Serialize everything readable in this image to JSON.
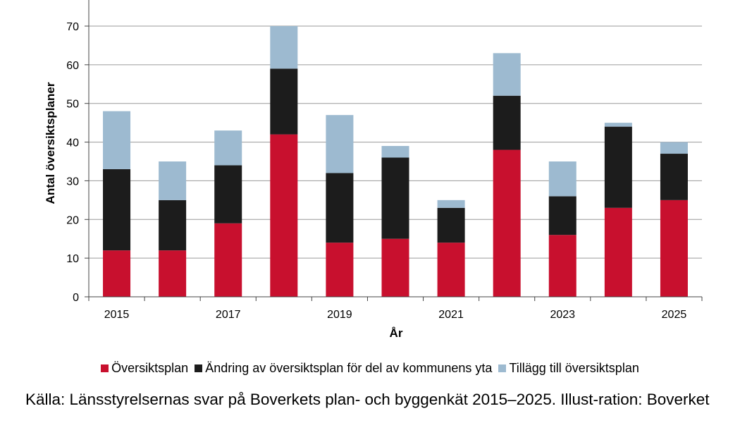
{
  "chart_data": {
    "type": "bar",
    "stacked": true,
    "categories": [
      "2015",
      "2016",
      "2017",
      "2018",
      "2019",
      "2020",
      "2021",
      "2022",
      "2023",
      "2024",
      "2025"
    ],
    "x_tick_labels": [
      "2015",
      "",
      "2017",
      "",
      "2019",
      "",
      "2021",
      "",
      "2023",
      "",
      "2025"
    ],
    "series": [
      {
        "name": "Översiktsplan",
        "color": "#c8102e",
        "values": [
          12,
          12,
          19,
          42,
          14,
          15,
          14,
          38,
          16,
          23,
          25
        ]
      },
      {
        "name": "Ändring av översiktsplan för del av kommunens yta",
        "color": "#1c1c1c",
        "values": [
          21,
          13,
          15,
          17,
          18,
          21,
          9,
          14,
          10,
          21,
          12
        ]
      },
      {
        "name": "Tillägg till översiktsplan",
        "color": "#9dbad0",
        "values": [
          15,
          10,
          9,
          11,
          15,
          3,
          2,
          11,
          9,
          1,
          3
        ]
      }
    ],
    "xlabel": "År",
    "ylabel": "Antal översiktsplaner",
    "ylim": [
      0,
      70
    ],
    "yticks": [
      0,
      10,
      20,
      30,
      40,
      50,
      60,
      70
    ],
    "grid": true,
    "legend_position": "bottom"
  },
  "source_text": "Källa: Länsstyrelsernas svar på Boverkets plan- och byggenkät 2015–2025. Illust-ration: Boverket"
}
